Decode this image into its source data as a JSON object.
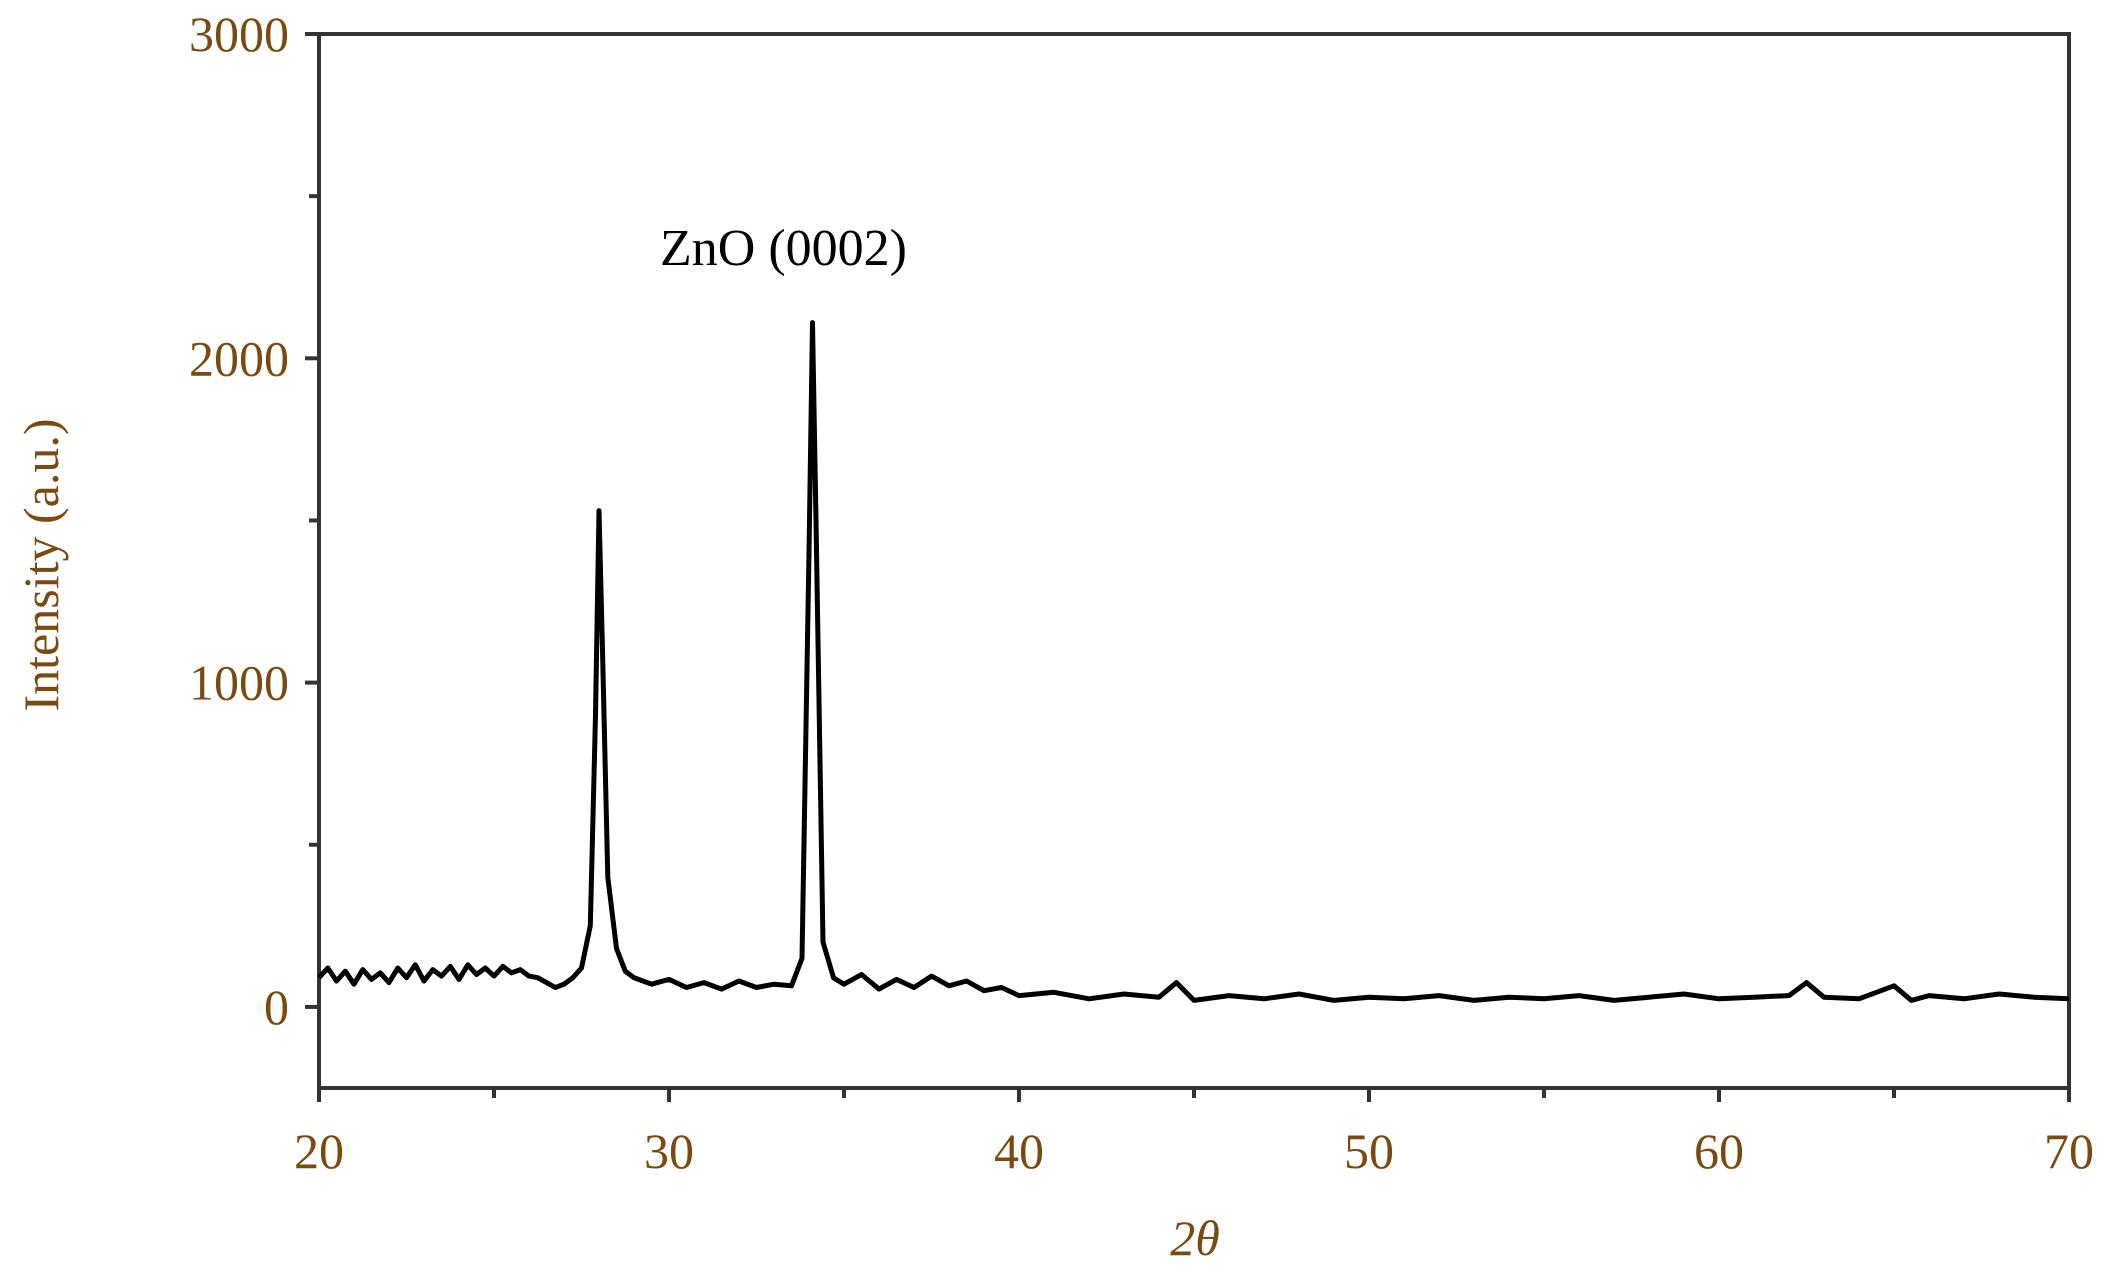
{
  "chart_data": {
    "type": "line",
    "xlabel": "2θ",
    "ylabel": "Intensity (a.u.)",
    "annotation": "ZnO (0002)",
    "xlim": [
      20,
      70
    ],
    "xticks": [
      20,
      30,
      40,
      50,
      60,
      70
    ],
    "xminorticks": [
      25,
      35,
      45,
      55,
      65
    ],
    "ylim": [
      -250,
      3000
    ],
    "yticks": [
      0,
      1000,
      2000,
      3000
    ],
    "yminorticks": [
      500,
      1500,
      2500
    ],
    "series": [
      {
        "color": "#000000",
        "x": [
          20,
          20.25,
          20.5,
          20.75,
          21,
          21.25,
          21.5,
          21.75,
          22,
          22.25,
          22.5,
          22.75,
          23,
          23.25,
          23.5,
          23.75,
          24,
          24.25,
          24.5,
          24.75,
          25,
          25.25,
          25.5,
          25.75,
          26,
          26.25,
          26.5,
          26.75,
          27,
          27.25,
          27.5,
          27.75,
          27.9,
          28,
          28.1,
          28.25,
          28.5,
          28.75,
          29,
          29.5,
          30,
          30.5,
          31,
          31.5,
          32,
          32.5,
          33,
          33.5,
          33.8,
          34,
          34.1,
          34.2,
          34.4,
          34.7,
          35,
          35.5,
          36,
          36.5,
          37,
          37.5,
          38,
          38.5,
          39,
          39.5,
          40,
          41,
          42,
          43,
          44,
          44.5,
          45,
          46,
          47,
          48,
          49,
          50,
          51,
          52,
          53,
          54,
          55,
          56,
          57,
          58,
          59,
          60,
          61,
          62,
          62.5,
          63,
          64,
          65,
          65.5,
          66,
          67,
          68,
          69,
          70
        ],
        "values": [
          90,
          120,
          80,
          110,
          70,
          115,
          85,
          105,
          75,
          120,
          90,
          130,
          80,
          115,
          95,
          125,
          85,
          130,
          100,
          120,
          95,
          125,
          105,
          115,
          95,
          90,
          75,
          60,
          70,
          90,
          120,
          250,
          900,
          1530,
          1100,
          400,
          180,
          110,
          90,
          70,
          85,
          60,
          75,
          55,
          80,
          60,
          70,
          65,
          150,
          1400,
          2110,
          1500,
          200,
          90,
          70,
          100,
          55,
          85,
          60,
          95,
          65,
          80,
          50,
          60,
          35,
          45,
          25,
          40,
          30,
          75,
          20,
          35,
          25,
          40,
          20,
          30,
          25,
          35,
          20,
          30,
          25,
          35,
          20,
          30,
          40,
          25,
          30,
          35,
          75,
          30,
          25,
          65,
          20,
          35,
          25,
          40,
          30,
          25
        ]
      }
    ]
  }
}
